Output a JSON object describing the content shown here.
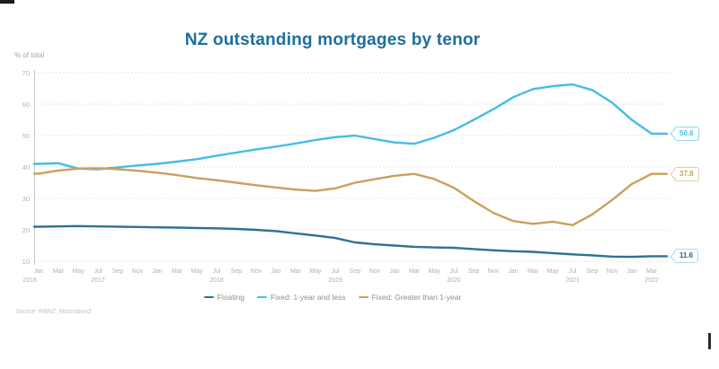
{
  "chart": {
    "title": "NZ outstanding mortgages by tenor",
    "y_axis_label": "% of total",
    "source": "Source: RBNZ, Macrobond",
    "colors": {
      "title": "#1d6f9e",
      "axis_text": "#b0b0b0",
      "grid": "#dcdcdc",
      "axis_line": "#c9c9c9",
      "legend_text": "#8f8f8f",
      "source_text": "#c3c3c3"
    }
  },
  "chart_data": {
    "type": "line",
    "title": "NZ outstanding mortgages by tenor",
    "ylabel": "% of total",
    "x_range": "Dec 2016 - Mar 2022",
    "ylim": [
      10,
      70
    ],
    "y_ticks": [
      10,
      20,
      30,
      40,
      50,
      60,
      70
    ],
    "grid": "horizontal-dotted",
    "legend_position": "bottom",
    "x_labels": [
      "Jan",
      "Mar",
      "May",
      "Jul",
      "Sep",
      "Nov",
      "Jan",
      "Mar",
      "May",
      "Jul",
      "Sep",
      "Nov",
      "Jan",
      "Mar",
      "May",
      "Jul",
      "Sep",
      "Nov",
      "Jan",
      "Mar",
      "May",
      "Jul",
      "Sep",
      "Nov",
      "Jan",
      "Mar",
      "May",
      "Jul",
      "Sep",
      "Nov",
      "Jan",
      "Mar"
    ],
    "year_labels": [
      {
        "label": "2016",
        "month_index": -0.45
      },
      {
        "label": "2017",
        "month_index": 3
      },
      {
        "label": "2018",
        "month_index": 9
      },
      {
        "label": "2019",
        "month_index": 15
      },
      {
        "label": "2020",
        "month_index": 21
      },
      {
        "label": "2021",
        "month_index": 27
      },
      {
        "label": "2022",
        "month_index": 31
      }
    ],
    "series": [
      {
        "name": "Floating",
        "color": "#2e7293",
        "end_label": "11.6",
        "callout": {
          "border": "#aadcf0",
          "text": "#34617f"
        },
        "values": [
          21.0,
          21.1,
          21.2,
          21.1,
          21.0,
          20.9,
          20.8,
          20.7,
          20.6,
          20.5,
          20.3,
          20.0,
          19.6,
          18.9,
          18.2,
          17.4,
          16.0,
          15.4,
          15.0,
          14.6,
          14.4,
          14.3,
          13.9,
          13.5,
          13.2,
          13.0,
          12.6,
          12.2,
          11.9,
          11.5,
          11.4,
          11.6
        ]
      },
      {
        "name": "Fixed: 1-year and less",
        "color": "#45bce7",
        "end_label": "50.6",
        "callout": {
          "border": "#92d9f2",
          "text": "#45bce7"
        },
        "values": [
          41.0,
          41.2,
          39.5,
          39.3,
          39.9,
          40.5,
          41.0,
          41.7,
          42.5,
          43.6,
          44.6,
          45.6,
          46.5,
          47.5,
          48.6,
          49.5,
          50.0,
          48.9,
          47.8,
          47.4,
          49.3,
          51.7,
          55.0,
          58.4,
          62.2,
          64.8,
          65.7,
          66.3,
          64.5,
          60.5,
          55.0,
          50.6
        ]
      },
      {
        "name": "Fixed: Greater than 1-year",
        "color": "#c9a05f",
        "end_label": "37.8",
        "callout": {
          "border": "#e4cfa7",
          "text": "#c79f5e"
        },
        "values": [
          37.9,
          38.9,
          39.5,
          39.6,
          39.3,
          38.8,
          38.2,
          37.4,
          36.5,
          35.8,
          35.0,
          34.2,
          33.5,
          32.8,
          32.4,
          33.2,
          35.0,
          36.1,
          37.2,
          37.8,
          36.2,
          33.4,
          29.2,
          25.4,
          22.8,
          21.9,
          22.6,
          21.5,
          24.9,
          29.5,
          34.6,
          37.8
        ]
      }
    ]
  }
}
